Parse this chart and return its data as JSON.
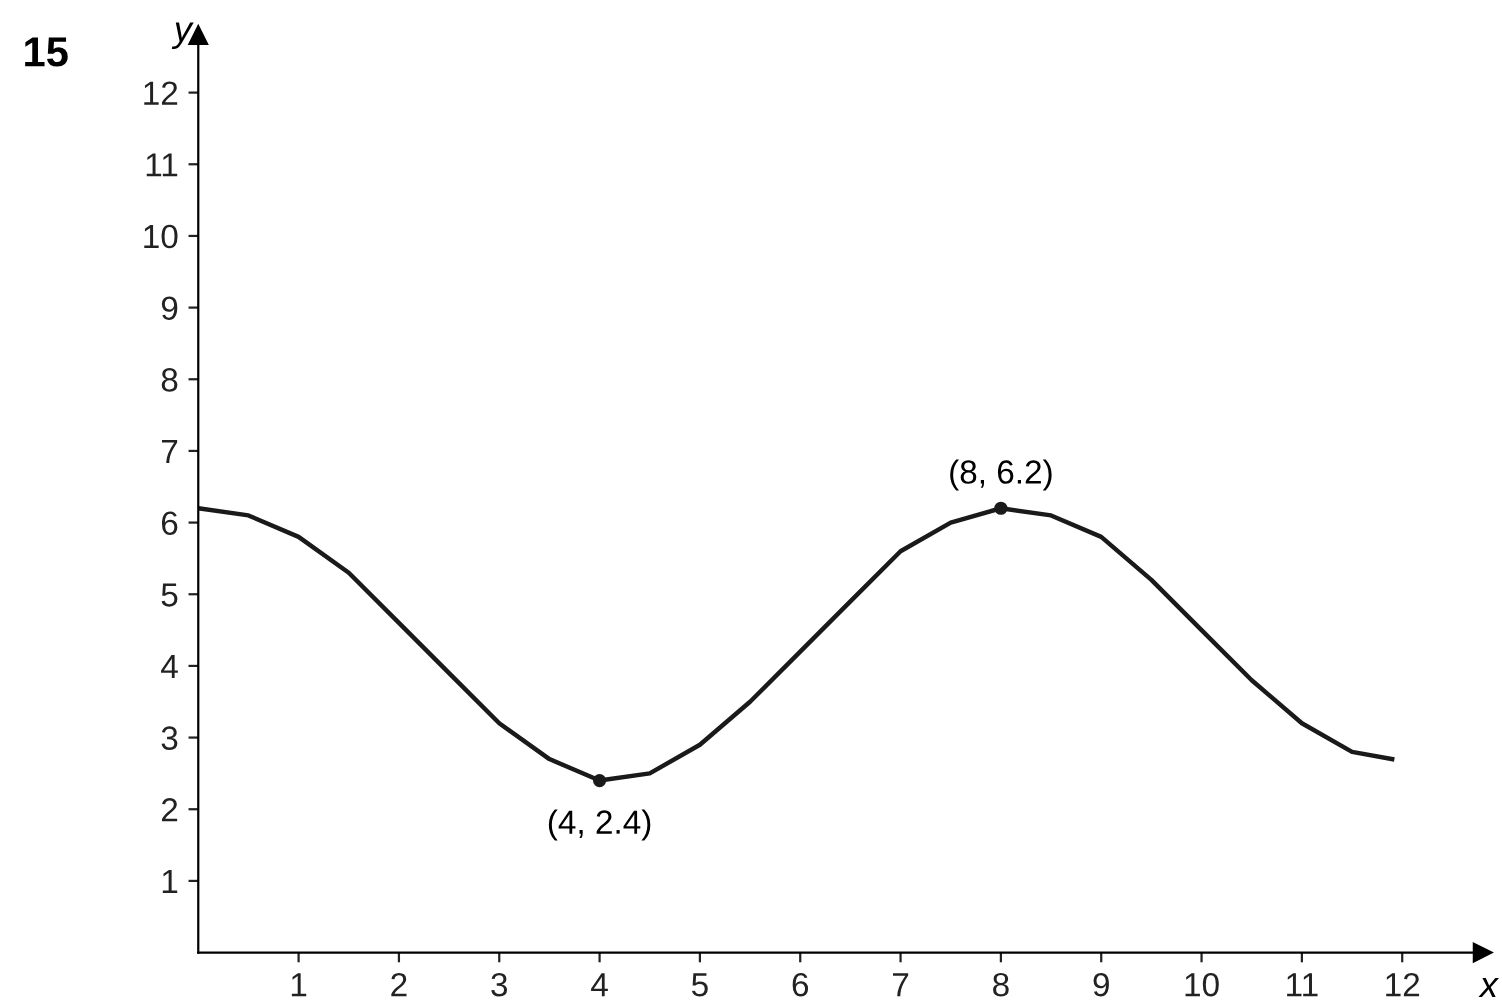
{
  "chart_data": {
    "type": "line",
    "xlabel": "x",
    "ylabel": "y",
    "annotations": [
      "15",
      {
        "text": "(8, 6.2)",
        "x": 8,
        "y": 6.2
      },
      {
        "text": "(4, 2.4)",
        "x": 4,
        "y": 2.4
      }
    ],
    "xlim": [
      0,
      12.8
    ],
    "ylim": [
      0,
      12.8
    ],
    "xticks": [
      1,
      2,
      3,
      4,
      5,
      6,
      7,
      8,
      9,
      10,
      11,
      12
    ],
    "yticks": [
      1,
      2,
      3,
      4,
      5,
      6,
      7,
      8,
      9,
      10,
      11,
      12
    ],
    "grid": false,
    "legend": false,
    "series": [
      {
        "color": "#1a1a1a",
        "marker": "none",
        "line_style": "solid",
        "x": [
          0,
          0.5,
          1,
          1.5,
          2,
          2.5,
          3,
          3.5,
          4,
          4.5,
          5,
          5.5,
          6,
          6.5,
          7,
          7.5,
          8,
          8.5,
          9,
          9.5,
          10,
          10.5,
          11,
          11.5,
          11.9
        ],
        "values": [
          6.2,
          6.1,
          5.8,
          5.3,
          4.6,
          3.9,
          3.2,
          2.7,
          2.4,
          2.5,
          2.9,
          3.5,
          4.2,
          4.9,
          5.6,
          6.0,
          6.2,
          6.1,
          5.8,
          5.2,
          4.5,
          3.8,
          3.2,
          2.8,
          2.7
        ]
      },
      {
        "type": "scatter",
        "color": "#1a1a1a",
        "marker": "circle",
        "x": [
          4,
          8
        ],
        "values": [
          2.4,
          6.2
        ]
      }
    ]
  }
}
